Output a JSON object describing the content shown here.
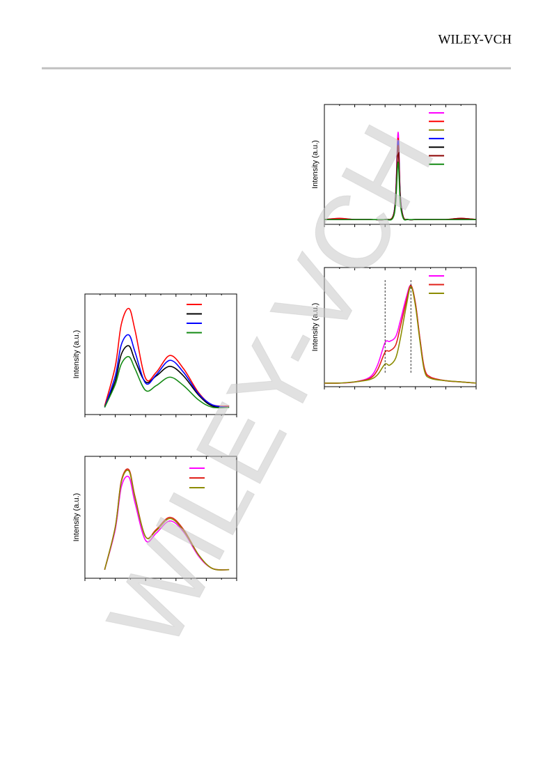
{
  "header": {
    "brand": "WILEY-VCH"
  },
  "watermark": "WILEY-VCH",
  "chart_data": [
    {
      "type": "line",
      "y_label": "Intensity (a.u.)",
      "x": [
        13,
        20,
        24,
        29,
        33,
        40,
        47,
        56,
        65,
        75,
        84,
        95
      ],
      "xlim": [
        0,
        100
      ],
      "ylim": [
        0,
        100
      ],
      "series": [
        {
          "color": "#ff0000",
          "values": [
            7,
            40,
            75,
            88,
            70,
            30,
            35,
            49,
            38,
            18,
            8,
            7
          ]
        },
        {
          "color": "#000000",
          "values": [
            6,
            28,
            50,
            57,
            45,
            27,
            32,
            40,
            32,
            16,
            7,
            6
          ]
        },
        {
          "color": "#0000ff",
          "values": [
            6,
            32,
            58,
            66,
            52,
            26,
            33,
            45,
            35,
            17,
            8,
            6
          ]
        },
        {
          "color": "#138a13",
          "values": [
            6,
            25,
            42,
            48,
            38,
            20,
            24,
            31,
            24,
            12,
            6,
            6
          ]
        }
      ]
    },
    {
      "type": "line",
      "y_label": "Intensity (a.u.)",
      "x": [
        13,
        20,
        24,
        29,
        33,
        40,
        47,
        56,
        65,
        75,
        84,
        95
      ],
      "xlim": [
        0,
        100
      ],
      "ylim": [
        0,
        100
      ],
      "series": [
        {
          "color": "#ff00ff",
          "values": [
            7,
            40,
            75,
            83,
            62,
            31,
            37,
            47,
            38,
            18,
            8,
            7
          ]
        },
        {
          "color": "#e0201a",
          "values": [
            7,
            42,
            80,
            89,
            67,
            34,
            40,
            50,
            40,
            19,
            8,
            7
          ]
        },
        {
          "color": "#8b8b00",
          "values": [
            7,
            42,
            79,
            88,
            66,
            34,
            39,
            49,
            39,
            19,
            8,
            7
          ]
        }
      ]
    },
    {
      "type": "line",
      "y_label": "Intensity (a.u.)",
      "x": [
        0,
        10,
        20,
        30,
        40,
        45,
        47,
        48.6,
        50,
        52,
        55,
        60,
        70,
        80,
        90,
        100
      ],
      "xlim": [
        0,
        100
      ],
      "ylim": [
        0,
        100
      ],
      "series": [
        {
          "color": "#ff00ff",
          "values": [
            4,
            5,
            4,
            4,
            4,
            6,
            25,
            77,
            25,
            6,
            4,
            4,
            4,
            4,
            5,
            4
          ]
        },
        {
          "color": "#ff0000",
          "values": [
            4,
            5,
            4,
            4,
            4,
            6,
            24,
            72,
            24,
            6,
            4,
            4,
            4,
            4,
            5,
            4
          ]
        },
        {
          "color": "#8b8b00",
          "values": [
            4,
            4,
            4,
            4,
            4,
            6,
            23,
            68,
            23,
            6,
            4,
            4,
            4,
            4,
            4,
            4
          ]
        },
        {
          "color": "#0000ff",
          "values": [
            4,
            4,
            4,
            4,
            4,
            6,
            24,
            70,
            24,
            6,
            4,
            4,
            4,
            4,
            4,
            4
          ]
        },
        {
          "color": "#000000",
          "values": [
            4,
            4,
            4,
            4,
            4,
            6,
            22,
            66,
            22,
            6,
            4,
            4,
            4,
            4,
            4,
            4
          ]
        },
        {
          "color": "#8b0000",
          "values": [
            4,
            4,
            4,
            4,
            4,
            6,
            22,
            66,
            22,
            6,
            4,
            4,
            4,
            4,
            5,
            4
          ]
        },
        {
          "color": "#138a13",
          "values": [
            4,
            4,
            4,
            4,
            4,
            5,
            18,
            52,
            18,
            5,
            4,
            4,
            4,
            4,
            4,
            4
          ]
        }
      ]
    },
    {
      "type": "line",
      "y_label": "Intensity (a.u.)",
      "x": [
        0,
        10,
        20,
        30,
        35,
        40,
        43,
        47,
        50,
        54,
        57,
        60,
        63,
        66,
        70,
        80,
        90,
        100
      ],
      "xlim": [
        0,
        100
      ],
      "ylim": [
        0,
        100
      ],
      "vlines": [
        40,
        57
      ],
      "series": [
        {
          "color": "#ff00ff",
          "values": [
            3,
            3,
            4,
            8,
            18,
            37,
            38,
            42,
            55,
            75,
            85,
            70,
            40,
            15,
            8,
            5,
            4,
            3
          ]
        },
        {
          "color": "#e0201a",
          "values": [
            3,
            3,
            4,
            7,
            14,
            29,
            30,
            35,
            50,
            72,
            85,
            70,
            40,
            15,
            8,
            5,
            4,
            3
          ]
        },
        {
          "color": "#8b8b00",
          "values": [
            3,
            3,
            4,
            6,
            10,
            19,
            18,
            24,
            40,
            68,
            84,
            68,
            38,
            13,
            7,
            5,
            4,
            3
          ]
        }
      ]
    }
  ]
}
